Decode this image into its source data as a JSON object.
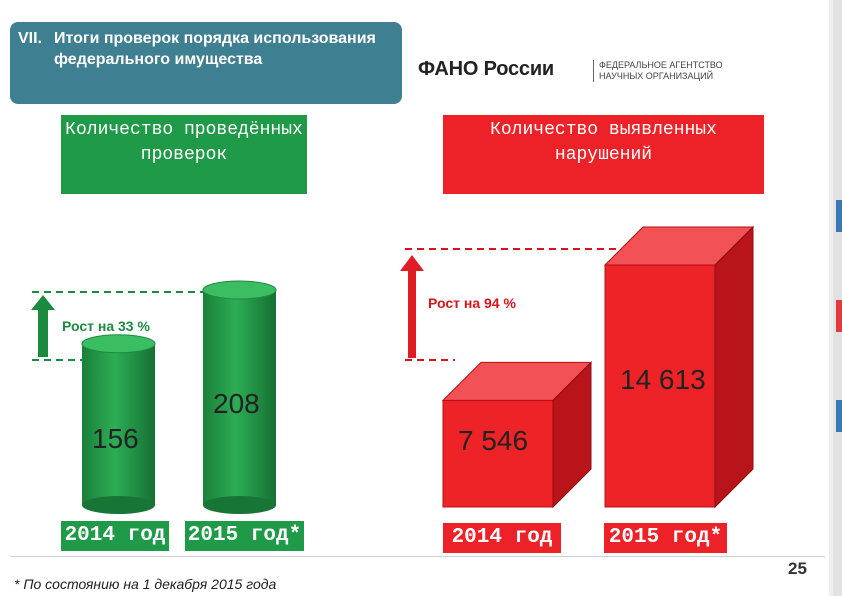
{
  "title": {
    "number": "VII.",
    "text": "Итоги проверок порядка использования федерального имущества"
  },
  "logo": {
    "brand": "ФАНО России",
    "subtitle_line1": "ФЕДЕРАЛЬНОЕ АГЕНТСТВО",
    "subtitle_line2": "НАУЧНЫХ ОРГАНИЗАЦИЙ"
  },
  "left_panel": {
    "header": "Количество проведённых проверок",
    "growth": "Рост на 33 %",
    "color": "#1f9a48"
  },
  "right_panel": {
    "header": "Количество выявленных нарушений",
    "growth": "Рост на 94 %",
    "color": "#ec2228"
  },
  "chart_data": [
    {
      "type": "bar",
      "categories": [
        "2014 год",
        "2015 год*"
      ],
      "values": [
        156,
        208
      ],
      "value_labels": [
        "156",
        "208"
      ],
      "series": [
        {
          "values": [
            156,
            208
          ]
        }
      ],
      "title": "Количество проведённых проверок",
      "annotation": "Рост на 33 %"
    },
    {
      "type": "bar",
      "categories": [
        "2014 год",
        "2015 год*"
      ],
      "values": [
        7546,
        14613
      ],
      "value_labels": [
        "7 546",
        "14 613"
      ],
      "series": [
        {
          "values": [
            7546,
            14613
          ]
        }
      ],
      "title": "Количество выявленных нарушений",
      "annotation": "Рост на 94 %"
    }
  ],
  "footnote": "* По состоянию на 1 декабря 2015 года",
  "page_number": "25"
}
